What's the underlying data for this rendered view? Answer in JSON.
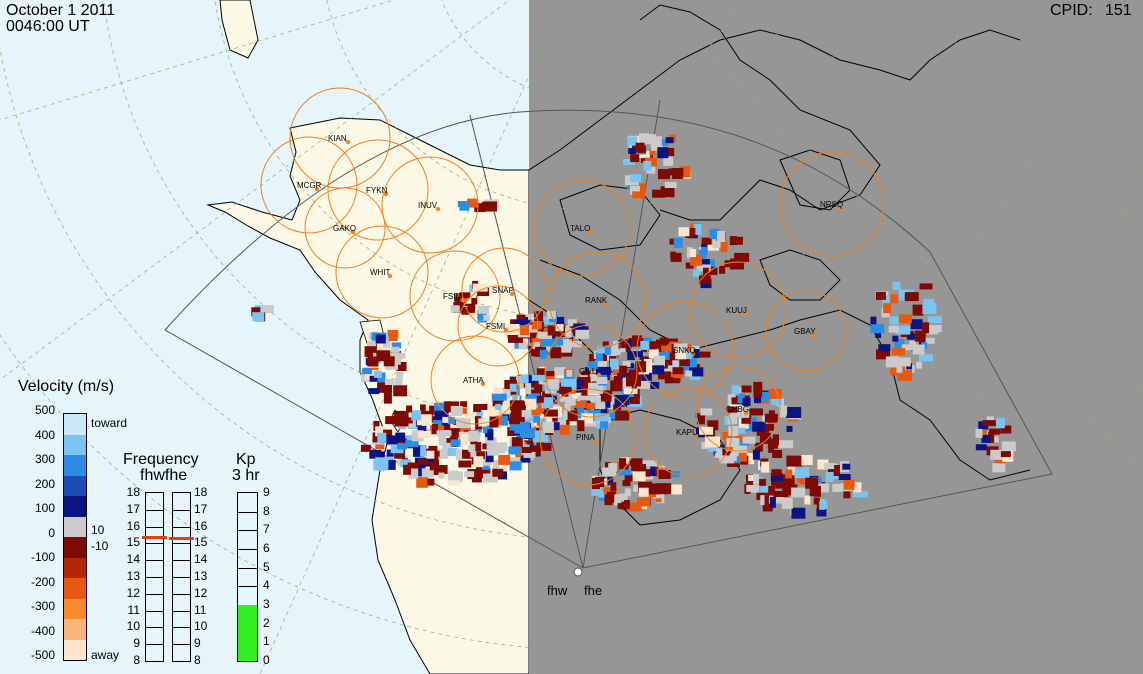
{
  "header": {
    "date": "October  1 2011",
    "time": "0046:00 UT",
    "cpid_label": "CPID:",
    "cpid_value": "151"
  },
  "radars": {
    "west": "fhw",
    "east": "fhe"
  },
  "stations": [
    "KIAN",
    "MCGR",
    "FYKN",
    "INUV",
    "GAKO",
    "WHIT",
    "FSIM",
    "SNAP",
    "FSMI",
    "RANK",
    "TALO",
    "NRSQ",
    "KUUJ",
    "GBAY",
    "SNKQ",
    "GILL",
    "ATHA",
    "CHBG",
    "KAPU",
    "PINA"
  ],
  "legends": {
    "velocity": {
      "title": "Velocity (m/s)",
      "ticks": [
        "500",
        "400",
        "300",
        "200",
        "100",
        "0",
        "-100",
        "-200",
        "-300",
        "-400",
        "-500"
      ],
      "toward": "toward",
      "away": "away",
      "zero_plus": "10",
      "zero_minus": "-10",
      "colors": [
        "#fde4cc",
        "#fcb577",
        "#f88a2e",
        "#e85910",
        "#b32804",
        "#7e0a04",
        "#cbcbcb",
        "#0b1480",
        "#1e4cb7",
        "#2a8ee6",
        "#7bc4f2",
        "#cfe8f8"
      ]
    },
    "frequency": {
      "title": "Frequency",
      "radars": "fhwfhe",
      "ticks": [
        "18",
        "17",
        "16",
        "15",
        "14",
        "13",
        "12",
        "11",
        "10",
        "9",
        "8"
      ],
      "fhw_level": 15.4,
      "fhe_level": 15.3,
      "marker_color": "#e04010"
    },
    "kp": {
      "title": "Kp",
      "subtitle": "3 hr",
      "ticks": [
        "9",
        "8",
        "7",
        "6",
        "5",
        "4",
        "3",
        "2",
        "1",
        "0"
      ],
      "value": 3,
      "fill_color": "#33ee22"
    }
  }
}
